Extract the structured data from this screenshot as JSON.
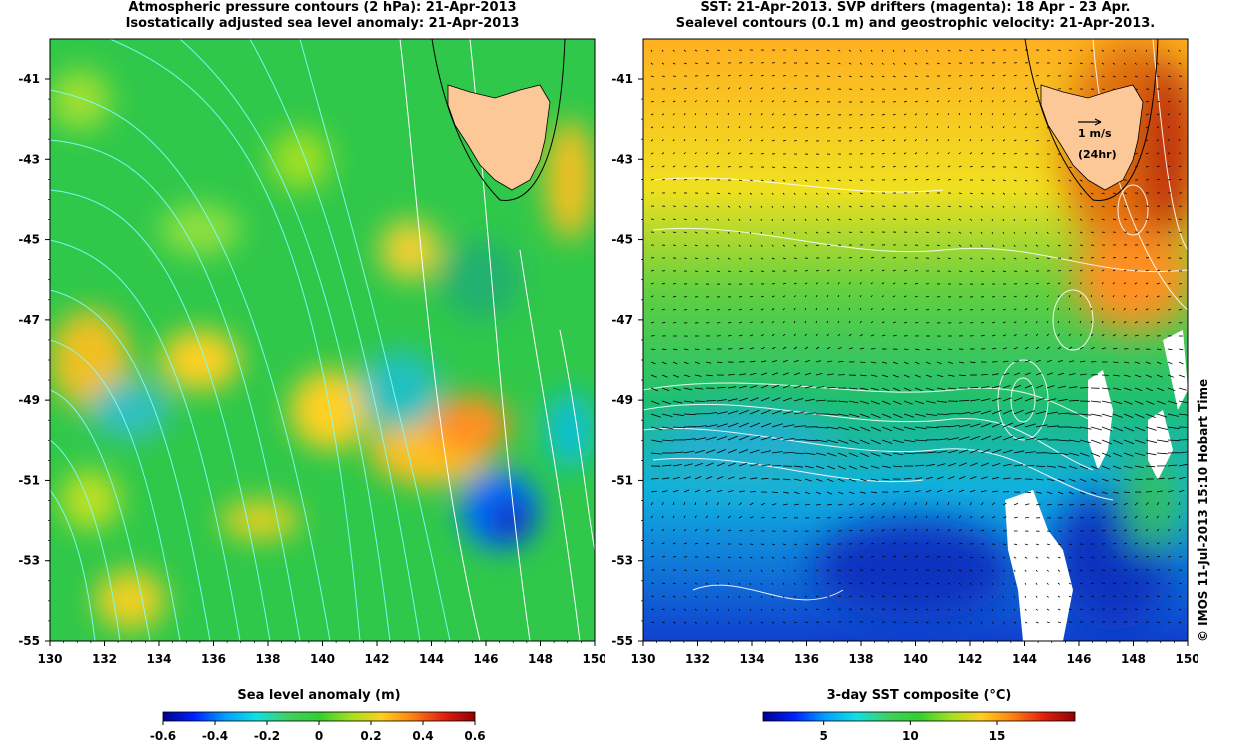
{
  "left_panel": {
    "title_line1": "Atmospheric pressure contours (2 hPa): 21-Apr-2013",
    "title_line2": "Isostatically adjusted sea level anomaly: 21-Apr-2013",
    "x_ticks": [
      "130",
      "132",
      "134",
      "136",
      "138",
      "140",
      "142",
      "144",
      "146",
      "148",
      "150"
    ],
    "y_ticks": [
      "-41",
      "-43",
      "-45",
      "-47",
      "-49",
      "-51",
      "-53",
      "-55"
    ],
    "colorbar_title": "Sea level anomaly (m)",
    "colorbar_ticks": [
      "-0.6",
      "-0.4",
      "-0.2",
      "0",
      "0.2",
      "0.4",
      "0.6"
    ],
    "colormap": [
      "#00008f",
      "#0020ff",
      "#00a0ff",
      "#10e0e0",
      "#40d060",
      "#30d030",
      "#a0e020",
      "#ffd020",
      "#ff8010",
      "#e02010",
      "#900000"
    ]
  },
  "right_panel": {
    "title_line1": "SST: 21-Apr-2013. SVP drifters (magenta): 18 Apr - 23 Apr.",
    "title_line2": "Sealevel contours (0.1 m) and geostrophic velocity: 21-Apr-2013.",
    "x_ticks": [
      "130",
      "132",
      "134",
      "136",
      "138",
      "140",
      "142",
      "144",
      "146",
      "148",
      "150"
    ],
    "y_ticks": [
      "-41",
      "-43",
      "-45",
      "-47",
      "-49",
      "-51",
      "-53",
      "-55"
    ],
    "scale_speed": "1 m/s",
    "scale_time": "(24hr)",
    "colorbar_title": "3-day SST composite (°C)",
    "colorbar_ticks": [
      "5",
      "10",
      "15"
    ],
    "colormap": [
      "#00008f",
      "#0020ff",
      "#00a0ff",
      "#10e0e0",
      "#40d060",
      "#30d030",
      "#a0e020",
      "#ffd020",
      "#ff8010",
      "#e02010",
      "#900000"
    ]
  },
  "credit": "© IMOS 11-Jul-2013 15:10 Hobart Time",
  "colors": {
    "land": "#fcc898",
    "contour_white": "#ffffff",
    "contour_cyan": "#80ffff"
  }
}
